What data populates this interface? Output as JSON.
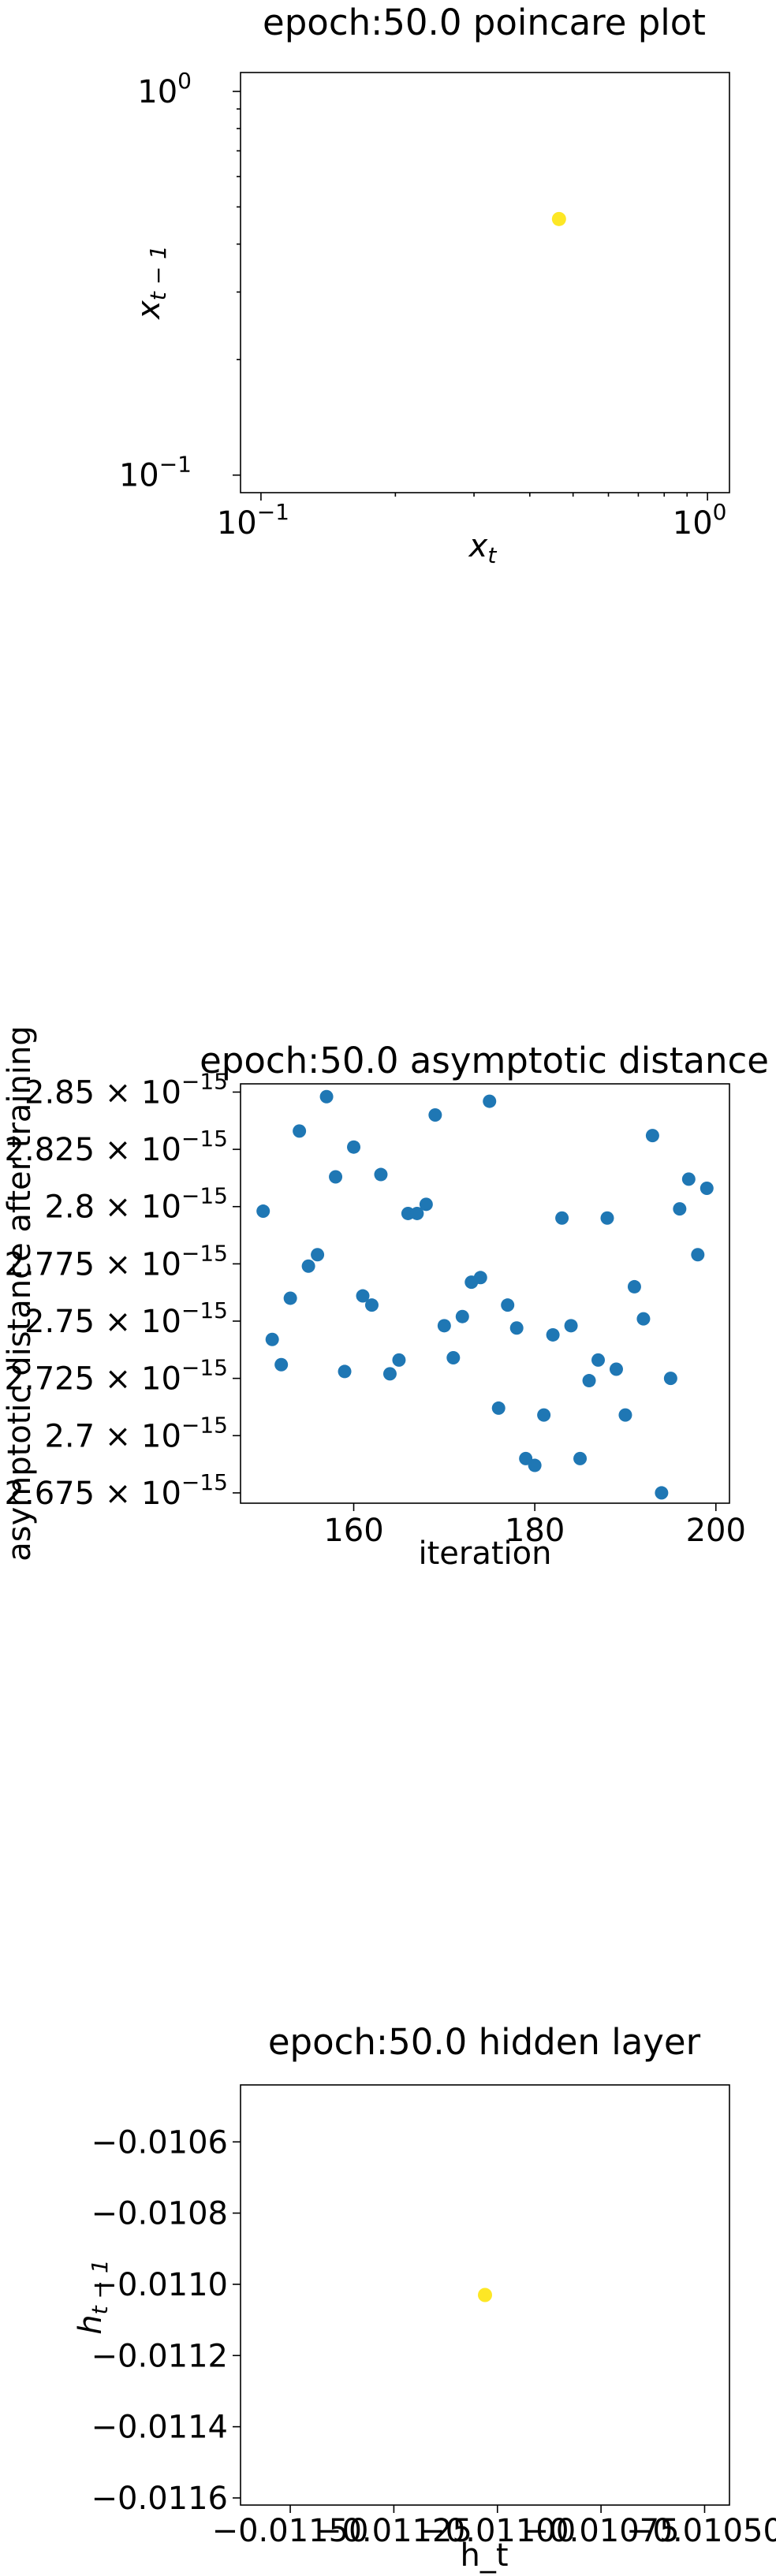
{
  "chart_data": [
    {
      "type": "scatter",
      "title": "epoch:50.0 poincare plot",
      "xlabel": "x_t",
      "ylabel": "x_{t-1}",
      "xscale": "log",
      "yscale": "log",
      "xlim": [
        0.09,
        1.12
      ],
      "ylim": [
        0.09,
        1.12
      ],
      "xticks": [
        {
          "value": 0.1,
          "base": "10",
          "exp": "−1"
        },
        {
          "value": 1,
          "base": "10",
          "exp": "0"
        }
      ],
      "yticks": [
        {
          "value": 0.1,
          "base": "10",
          "exp": "−1"
        },
        {
          "value": 1,
          "base": "10",
          "exp": "0"
        }
      ],
      "point_color": "#fde725",
      "points": [
        {
          "x": 0.465,
          "y": 0.465
        }
      ]
    },
    {
      "type": "scatter",
      "title": "epoch:50.0 asymptotic distance",
      "xlabel": "iteration",
      "ylabel": "asymptotic distance after training",
      "xlim": [
        147.5,
        201.5
      ],
      "ylim": [
        2.6705,
        2.8536
      ],
      "exponent_label": "−15",
      "point_color": "#1f77b4",
      "xticks": [
        {
          "value": 160,
          "label": "160"
        },
        {
          "value": 180,
          "label": "180"
        },
        {
          "value": 200,
          "label": "200"
        }
      ],
      "yticks": [
        {
          "value": 2.675,
          "label": "2.675"
        },
        {
          "value": 2.7,
          "label": "2.7"
        },
        {
          "value": 2.725,
          "label": "2.725"
        },
        {
          "value": 2.75,
          "label": "2.75"
        },
        {
          "value": 2.775,
          "label": "2.775"
        },
        {
          "value": 2.8,
          "label": "2.8"
        },
        {
          "value": 2.825,
          "label": "2.825"
        },
        {
          "value": 2.85,
          "label": "2.85"
        }
      ],
      "x": [
        150,
        151,
        152,
        153,
        154,
        155,
        156,
        157,
        158,
        159,
        160,
        161,
        162,
        163,
        164,
        165,
        166,
        167,
        168,
        169,
        170,
        171,
        172,
        173,
        174,
        175,
        176,
        177,
        178,
        179,
        180,
        181,
        182,
        183,
        184,
        185,
        186,
        187,
        188,
        189,
        190,
        191,
        192,
        193,
        194,
        195,
        196,
        197,
        198,
        199
      ],
      "y": [
        2.798,
        2.742,
        2.731,
        2.76,
        2.833,
        2.774,
        2.779,
        2.848,
        2.813,
        2.728,
        2.826,
        2.761,
        2.757,
        2.814,
        2.727,
        2.733,
        2.797,
        2.797,
        2.801,
        2.84,
        2.748,
        2.734,
        2.752,
        2.767,
        2.769,
        2.846,
        2.712,
        2.757,
        2.747,
        2.69,
        2.687,
        2.709,
        2.744,
        2.795,
        2.748,
        2.69,
        2.724,
        2.733,
        2.795,
        2.729,
        2.709,
        2.765,
        2.751,
        2.831,
        2.675,
        2.725,
        2.799,
        2.812,
        2.779,
        2.808
      ]
    },
    {
      "type": "scatter",
      "title": "epoch:50.0 hidden layer",
      "xlabel": "h_t",
      "ylabel": "h_{t-1}",
      "xlim": [
        -0.01162,
        -0.01044
      ],
      "ylim": [
        -0.01162,
        -0.01044
      ],
      "point_color": "#fde725",
      "xticks": [
        {
          "value": -0.0115,
          "label": "−0.01150"
        },
        {
          "value": -0.01125,
          "label": "−0.01125"
        },
        {
          "value": -0.011,
          "label": "−0.01100"
        },
        {
          "value": -0.01075,
          "label": "−0.01075"
        },
        {
          "value": -0.0105,
          "label": "−0.01050"
        }
      ],
      "yticks": [
        {
          "value": -0.0106,
          "label": "−0.0106"
        },
        {
          "value": -0.0108,
          "label": "−0.0108"
        },
        {
          "value": -0.011,
          "label": "−0.0110"
        },
        {
          "value": -0.0112,
          "label": "−0.0112"
        },
        {
          "value": -0.0114,
          "label": "−0.0114"
        },
        {
          "value": -0.0116,
          "label": "−0.0116"
        }
      ],
      "points": [
        {
          "x": -0.01103,
          "y": -0.01103
        }
      ]
    }
  ]
}
